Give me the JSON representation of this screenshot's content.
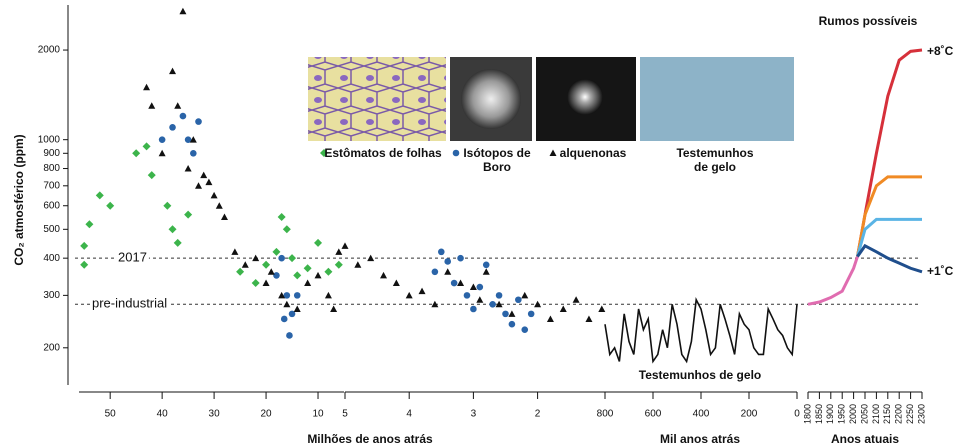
{
  "chart_data": [
    {
      "type": "scatter",
      "log_y": true,
      "ylim": [
        150,
        2900
      ],
      "yticks": [
        200,
        300,
        400,
        500,
        600,
        700,
        800,
        900,
        1000,
        2000
      ],
      "ylabel": "CO₂ atmosférico (ppm)",
      "xlim": [
        56,
        5
      ],
      "xticks": [
        50,
        40,
        30,
        20,
        10
      ],
      "hlines": [
        {
          "value": 400,
          "label": "2017"
        },
        {
          "value": 280,
          "label": "pre-industrial"
        }
      ],
      "series": [
        {
          "name": "Estômatos de folhas",
          "color": "#3cb44b",
          "marker": "diamond",
          "x": [
            55,
            55,
            54,
            52,
            50,
            45,
            43,
            42,
            39,
            38,
            37,
            35,
            25,
            22,
            20,
            18,
            17,
            16,
            15,
            14,
            12,
            10,
            8,
            6
          ],
          "values": [
            380,
            440,
            520,
            650,
            600,
            900,
            950,
            760,
            600,
            500,
            450,
            560,
            360,
            330,
            380,
            420,
            550,
            500,
            400,
            350,
            370,
            450,
            360,
            380
          ]
        },
        {
          "name": "Isótopos de Boro",
          "color": "#2a64a8",
          "marker": "circle",
          "x": [
            40,
            38,
            36,
            35,
            34,
            33,
            18,
            17,
            16.5,
            16,
            15.5,
            15,
            14
          ],
          "values": [
            1000,
            1100,
            1200,
            1000,
            900,
            1150,
            350,
            400,
            250,
            300,
            220,
            260,
            300
          ]
        },
        {
          "name": "alquenonas",
          "color": "#111111",
          "marker": "triangle",
          "x": [
            43,
            42,
            40,
            38,
            37,
            36,
            35,
            34,
            33,
            32,
            31,
            30,
            29,
            28,
            26,
            24,
            22,
            20,
            19,
            17,
            16,
            14,
            12,
            10,
            8,
            7,
            6
          ],
          "values": [
            1500,
            1300,
            900,
            1700,
            1300,
            2700,
            800,
            1000,
            700,
            760,
            720,
            650,
            600,
            550,
            420,
            380,
            400,
            330,
            360,
            300,
            280,
            270,
            330,
            350,
            300,
            270,
            420
          ]
        }
      ]
    },
    {
      "type": "scatter",
      "log_y": true,
      "ylim": [
        150,
        2900
      ],
      "xlim": [
        5,
        0.95
      ],
      "xticks": [
        5,
        4,
        3,
        2
      ],
      "xlabel": "Milhões de anos atrás",
      "series": [
        {
          "name": "alquenonas",
          "color": "#111111",
          "marker": "triangle",
          "x": [
            5,
            4.8,
            4.6,
            4.4,
            4.2,
            4,
            3.8,
            3.6,
            3.4,
            3.2,
            3,
            2.9,
            2.8,
            2.6,
            2.4,
            2.2,
            2,
            1.8,
            1.6,
            1.4,
            1.2,
            1.0
          ],
          "values": [
            440,
            380,
            400,
            350,
            330,
            300,
            310,
            280,
            360,
            330,
            320,
            290,
            360,
            280,
            260,
            300,
            280,
            250,
            270,
            290,
            250,
            270
          ]
        },
        {
          "name": "Isótopos de Boro",
          "color": "#2a64a8",
          "marker": "circle",
          "x": [
            3.6,
            3.5,
            3.4,
            3.3,
            3.2,
            3.1,
            3.0,
            2.9,
            2.8,
            2.7,
            2.6,
            2.5,
            2.4,
            2.3,
            2.2,
            2.1
          ],
          "values": [
            360,
            420,
            390,
            330,
            400,
            300,
            270,
            320,
            380,
            280,
            300,
            260,
            240,
            290,
            230,
            260
          ]
        }
      ]
    },
    {
      "type": "line",
      "log_y": true,
      "ylim": [
        150,
        2900
      ],
      "xlim": [
        800,
        0
      ],
      "xticks": [
        800,
        600,
        400,
        200,
        0
      ],
      "xlabel": "Mil anos atrás",
      "annotation": "Testemunhos de gelo",
      "series": [
        {
          "name": "Testemunhos de gelo",
          "color": "#111111",
          "x": [
            800,
            780,
            760,
            740,
            720,
            700,
            680,
            660,
            640,
            620,
            600,
            580,
            560,
            540,
            520,
            500,
            480,
            460,
            440,
            420,
            400,
            380,
            360,
            340,
            320,
            300,
            280,
            260,
            240,
            220,
            200,
            180,
            160,
            140,
            120,
            100,
            80,
            60,
            40,
            20,
            0
          ],
          "values": [
            240,
            190,
            200,
            180,
            260,
            210,
            190,
            270,
            230,
            250,
            180,
            190,
            230,
            200,
            280,
            240,
            190,
            180,
            210,
            290,
            270,
            230,
            190,
            200,
            280,
            250,
            220,
            190,
            260,
            240,
            230,
            200,
            190,
            190,
            270,
            250,
            230,
            220,
            200,
            190,
            280
          ]
        }
      ]
    },
    {
      "type": "line",
      "log_y": true,
      "ylim": [
        150,
        2900
      ],
      "xlim": [
        1800,
        2300
      ],
      "xticks": [
        1800,
        1850,
        1900,
        1950,
        2000,
        2050,
        2100,
        2150,
        2200,
        2250,
        2300
      ],
      "xlabel": "Anos atuais",
      "title": "Rumos possíveis",
      "annotations": [
        "+8˚C",
        "+1˚C"
      ],
      "series": [
        {
          "color": "#e06cb0",
          "x": [
            1800,
            1850,
            1900,
            1950,
            2000,
            2017
          ],
          "values": [
            280,
            285,
            295,
            310,
            370,
            405
          ]
        },
        {
          "color": "#d6303a",
          "x": [
            2017,
            2050,
            2100,
            2150,
            2200,
            2250,
            2300
          ],
          "values": [
            405,
            560,
            900,
            1400,
            1850,
            1980,
            2000
          ]
        },
        {
          "color": "#f08a24",
          "x": [
            2017,
            2050,
            2100,
            2150,
            2200,
            2250,
            2300
          ],
          "values": [
            405,
            560,
            700,
            750,
            750,
            750,
            750
          ]
        },
        {
          "color": "#5ab4e5",
          "x": [
            2017,
            2050,
            2100,
            2150,
            2200,
            2250,
            2300
          ],
          "values": [
            405,
            500,
            540,
            540,
            540,
            540,
            540
          ]
        },
        {
          "color": "#1f4e8c",
          "x": [
            2017,
            2050,
            2100,
            2150,
            2200,
            2250,
            2300
          ],
          "values": [
            405,
            440,
            420,
            400,
            385,
            370,
            360
          ]
        }
      ]
    }
  ]
}
